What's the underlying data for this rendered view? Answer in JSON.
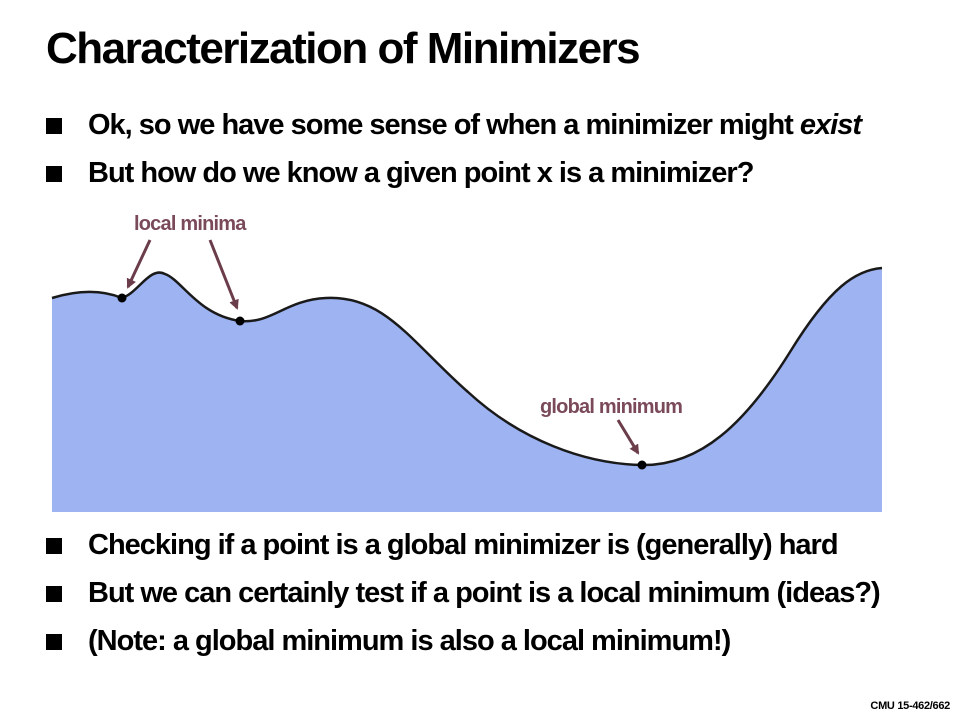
{
  "slide": {
    "title": "Characterization of Minimizers",
    "bullets_top": [
      {
        "text": "Ok, so we have some sense of when a minimizer might ",
        "emphasis": "exist"
      },
      {
        "text": "But how do we know a given point x is a minimizer?"
      }
    ],
    "bullets_bottom": [
      {
        "text": "Checking if a point is a global minimizer is (generally) hard"
      },
      {
        "text": "But we can certainly test if a point is a local minimum (ideas?)"
      },
      {
        "text": "(Note: a global minimum is also a local minimum!)"
      }
    ],
    "footer": "CMU 15-462/662"
  },
  "diagram": {
    "labels": {
      "local": "local minima",
      "global": "global minimum"
    },
    "colors": {
      "fill": "#9db3f2",
      "curve": "#1a1a1a",
      "arrow": "#6b3d4a",
      "point": "#000000"
    }
  }
}
